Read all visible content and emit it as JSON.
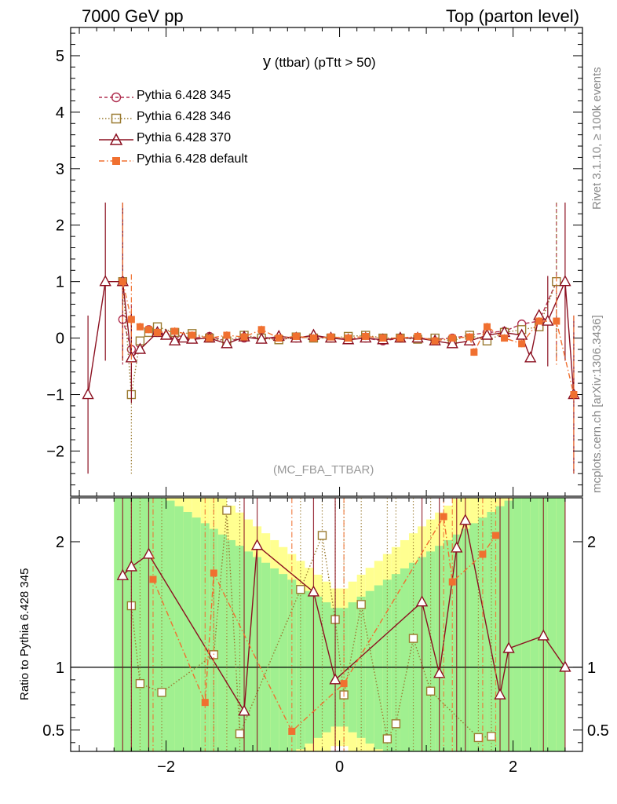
{
  "header": {
    "left": "7000 GeV pp",
    "right": "Top (parton level)"
  },
  "side_labels": {
    "rivet": "Rivet 3.1.10, ≥ 100k events",
    "mcplots": "mcplots.cern.ch [arXiv:1306.3436]"
  },
  "plot_title": {
    "var": "y",
    "rest": "(ttbar) (pTtt > 50)"
  },
  "watermark": "(MC_FBA_TTBAR)",
  "ratio_ylabel": "Ratio to Pythia 6.428 345",
  "chart_data": [
    {
      "type": "line",
      "panel": "main",
      "xlim": [
        -3.1,
        2.8
      ],
      "ylim": [
        -2.8,
        5.5
      ],
      "yticks": [
        -2,
        -1,
        0,
        1,
        2,
        3,
        4,
        5
      ],
      "xticks": [
        -2,
        0,
        2
      ],
      "series": [
        {
          "name": "Pythia 6.428 345",
          "color": "#b03050",
          "marker": "circle-open",
          "line": "dashed",
          "x": [
            -2.5,
            -2.4,
            -2.3,
            -2.2,
            -2.1,
            -1.9,
            -1.7,
            -1.5,
            -1.3,
            -1.1,
            -0.9,
            -0.7,
            -0.5,
            -0.3,
            -0.1,
            0.1,
            0.3,
            0.5,
            0.7,
            0.9,
            1.1,
            1.3,
            1.5,
            1.7,
            1.9,
            2.1,
            2.3,
            2.5
          ],
          "y": [
            0.33,
            -0.2,
            -0.1,
            0.15,
            0.1,
            0.05,
            0.0,
            0.03,
            -0.05,
            0.0,
            0.02,
            -0.02,
            0.0,
            0.02,
            0.0,
            -0.02,
            0.0,
            -0.05,
            0.0,
            0.0,
            -0.02,
            0.0,
            0.05,
            0.1,
            0.12,
            0.25,
            0.3,
            1.0
          ]
        },
        {
          "name": "Pythia 6.428 346",
          "color": "#9a7a30",
          "marker": "square-open",
          "line": "dotted",
          "x": [
            -2.5,
            -2.4,
            -2.3,
            -2.2,
            -2.1,
            -1.9,
            -1.7,
            -1.5,
            -1.3,
            -1.1,
            -0.9,
            -0.7,
            -0.5,
            -0.3,
            -0.1,
            0.1,
            0.3,
            0.5,
            0.7,
            0.9,
            1.1,
            1.3,
            1.5,
            1.7,
            1.9,
            2.1,
            2.3,
            2.5
          ],
          "y": [
            1.0,
            -1.0,
            -0.05,
            0.1,
            0.2,
            0.1,
            0.08,
            0.0,
            -0.05,
            0.05,
            0.0,
            -0.03,
            0.02,
            0.0,
            0.0,
            0.03,
            0.05,
            0.0,
            0.0,
            -0.02,
            0.0,
            -0.05,
            0.05,
            -0.05,
            0.1,
            0.15,
            0.2,
            1.0
          ]
        },
        {
          "name": "Pythia 6.428 370",
          "color": "#8b1020",
          "marker": "triangle-open",
          "line": "solid",
          "x": [
            -2.9,
            -2.7,
            -2.5,
            -2.4,
            -2.3,
            -2.1,
            -2.0,
            -1.9,
            -1.8,
            -1.7,
            -1.5,
            -1.3,
            -1.1,
            -0.9,
            -0.7,
            -0.5,
            -0.3,
            -0.1,
            0.1,
            0.3,
            0.5,
            0.7,
            0.9,
            1.1,
            1.3,
            1.5,
            1.7,
            1.9,
            2.1,
            2.2,
            2.3,
            2.4,
            2.6,
            2.7
          ],
          "y": [
            -1.0,
            1.0,
            1.0,
            -0.35,
            -0.2,
            0.1,
            0.05,
            -0.05,
            0.0,
            -0.02,
            0.0,
            -0.1,
            0.02,
            -0.02,
            0.03,
            0.0,
            0.05,
            0.0,
            -0.03,
            0.0,
            -0.03,
            0.0,
            0.0,
            -0.05,
            -0.1,
            -0.05,
            0.05,
            0.1,
            0.05,
            -0.35,
            0.4,
            0.3,
            1.0,
            -1.0
          ]
        },
        {
          "name": "Pythia 6.428 default",
          "color": "#f07030",
          "marker": "square-filled",
          "line": "dashdot",
          "x": [
            -2.5,
            -2.4,
            -2.3,
            -2.2,
            -2.1,
            -1.9,
            -1.7,
            -1.5,
            -1.3,
            -1.1,
            -0.9,
            -0.7,
            -0.5,
            -0.3,
            -0.1,
            0.1,
            0.3,
            0.5,
            0.7,
            0.9,
            1.1,
            1.3,
            1.5,
            1.55,
            1.7,
            1.9,
            2.1,
            2.3,
            2.5,
            2.7
          ],
          "y": [
            1.0,
            0.33,
            0.2,
            0.15,
            0.1,
            0.12,
            0.05,
            0.0,
            0.05,
            0.02,
            0.15,
            0.0,
            0.03,
            0.0,
            0.02,
            0.0,
            0.03,
            0.0,
            0.0,
            0.03,
            -0.05,
            0.0,
            0.02,
            -0.25,
            0.2,
            0.0,
            -0.1,
            0.3,
            0.3,
            -1.0
          ]
        }
      ]
    },
    {
      "type": "line",
      "panel": "ratio",
      "xlim": [
        -3.1,
        2.8
      ],
      "ylim": [
        0.33,
        2.35
      ],
      "yticks": [
        0.5,
        1,
        2
      ],
      "ytick_labels": [
        "0.5",
        "1",
        "2"
      ],
      "xticks": [
        -2,
        0,
        2
      ],
      "xtick_labels": [
        "−2",
        "0",
        "2"
      ],
      "band_colors": {
        "inner": "#a0f090",
        "outer": "#ffff90"
      },
      "series": [
        {
          "name": "Pythia 6.428 346",
          "color": "#9a7a30",
          "marker": "square-open",
          "line": "dotted",
          "x": [
            -2.4,
            -2.3,
            -2.05,
            -1.45,
            -1.3,
            -1.15,
            -0.45,
            -0.2,
            -0.05,
            0.05,
            0.25,
            0.55,
            0.65,
            0.85,
            1.05,
            1.6,
            1.75
          ],
          "y": [
            1.49,
            0.87,
            0.8,
            1.1,
            2.25,
            0.47,
            1.62,
            2.05,
            1.38,
            0.78,
            1.5,
            0.43,
            0.55,
            1.23,
            0.81,
            0.44,
            0.45
          ]
        },
        {
          "name": "Pythia 6.428 370",
          "color": "#8b1020",
          "marker": "triangle-open",
          "line": "solid",
          "x": [
            -2.5,
            -2.4,
            -2.2,
            -1.1,
            -0.95,
            -0.3,
            -0.05,
            0.95,
            1.15,
            1.35,
            1.45,
            1.85,
            1.95,
            2.35,
            2.6
          ],
          "y": [
            1.73,
            1.8,
            1.9,
            0.65,
            1.97,
            1.6,
            0.9,
            1.52,
            0.95,
            1.95,
            2.17,
            0.78,
            1.15,
            1.25,
            1.0
          ]
        },
        {
          "name": "Pythia 6.428 default",
          "color": "#f07030",
          "marker": "square-filled",
          "line": "dashdot",
          "x": [
            -2.15,
            -1.55,
            -1.45,
            -0.55,
            0.05,
            1.2,
            1.3,
            1.65,
            1.8
          ],
          "y": [
            1.7,
            0.72,
            1.75,
            0.49,
            0.87,
            2.2,
            1.68,
            1.9,
            2.05
          ]
        }
      ]
    }
  ]
}
